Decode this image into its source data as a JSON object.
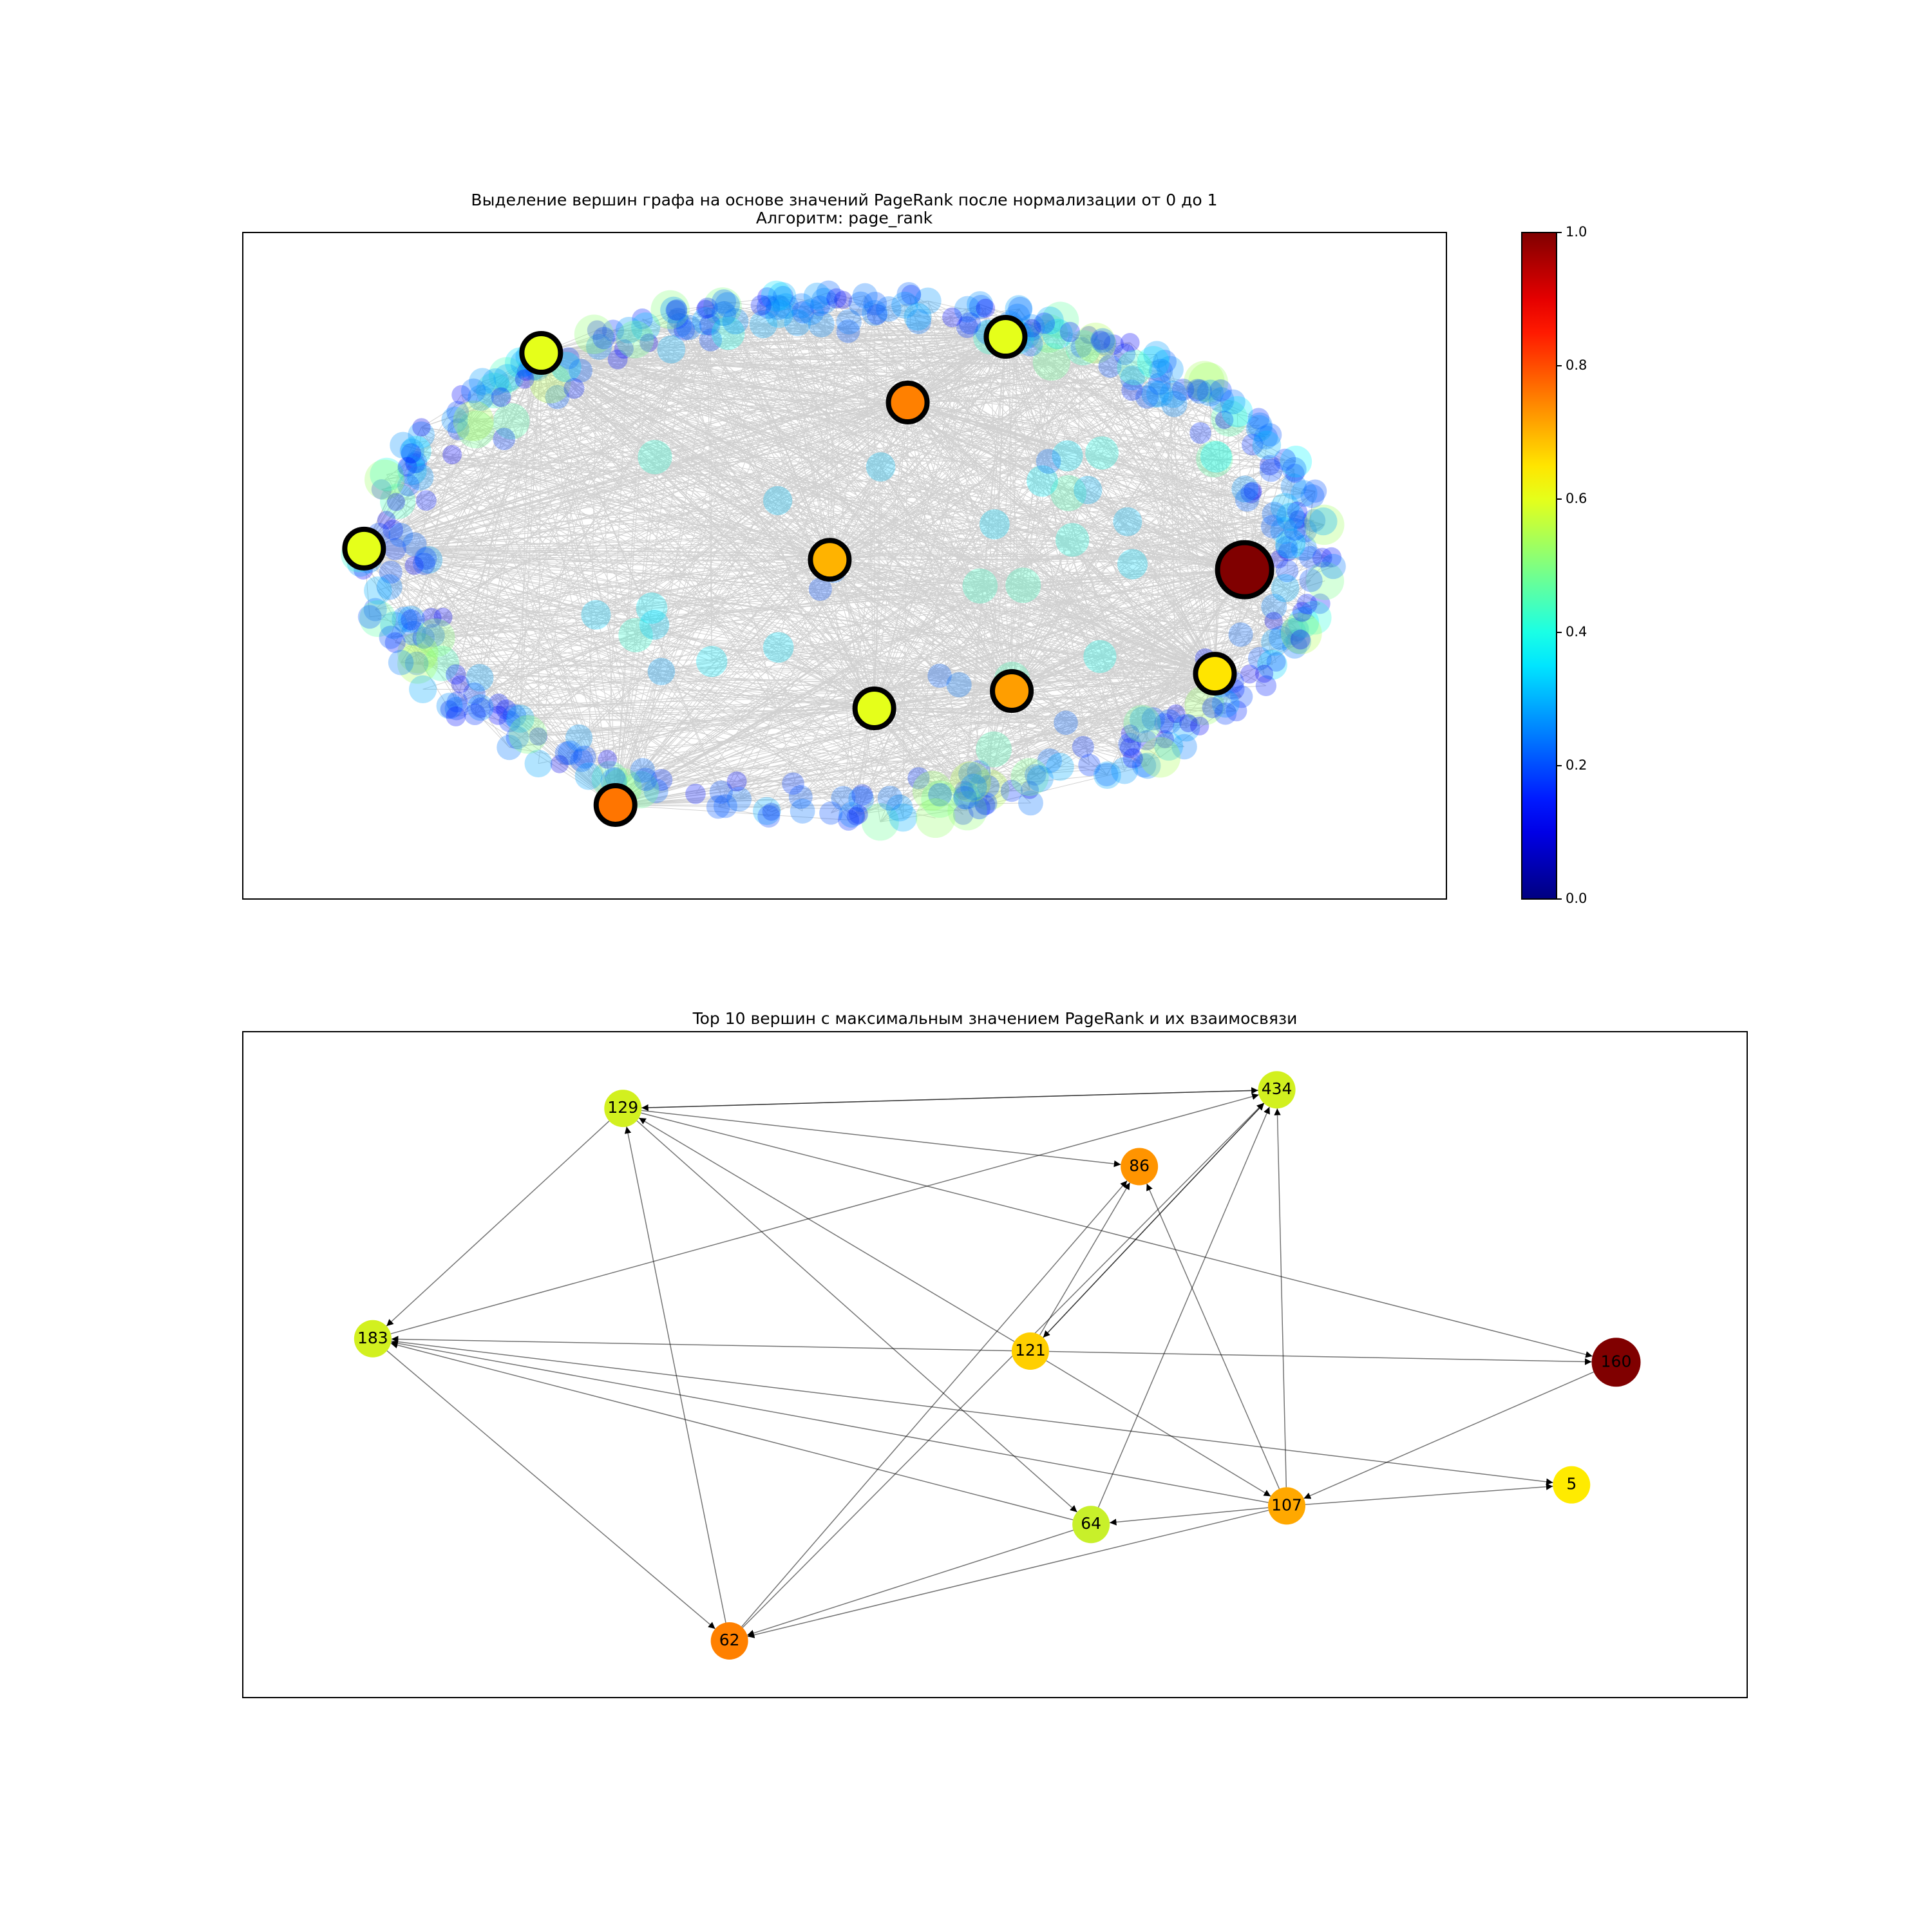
{
  "top_graph": {
    "title": "Выделение вершин графа на основе значений PageRank после нормализации от 0 до 1",
    "subtitle": "Алгоритм: page_rank",
    "colorbar": {
      "colormap": "jet",
      "lim": [
        0,
        1
      ],
      "ticks": [
        {
          "value": 0,
          "label": "0.0"
        },
        {
          "value": 0.2,
          "label": "0.2"
        },
        {
          "value": 0.4,
          "label": "0.4"
        },
        {
          "value": 0.6,
          "label": "0.6"
        },
        {
          "value": 0.8,
          "label": "0.8"
        },
        {
          "value": 1,
          "label": "1.0"
        }
      ]
    }
  },
  "bottom_graph": {
    "title": "Top 10 вершин с максимальным значением PageRank и их взаимосвязи",
    "nodes": [
      {
        "label": "129",
        "color": "#d2f01f"
      },
      {
        "label": "434",
        "color": "#d2f01f"
      },
      {
        "label": "86",
        "color": "#ff9400"
      },
      {
        "label": "183",
        "color": "#d2f01f"
      },
      {
        "label": "121",
        "color": "#ffcf00"
      },
      {
        "label": "160",
        "color": "#800000"
      },
      {
        "label": "5",
        "color": "#ffeb00"
      },
      {
        "label": "107",
        "color": "#ffa800"
      },
      {
        "label": "64",
        "color": "#c8f02a"
      },
      {
        "label": "62",
        "color": "#ff8000"
      }
    ]
  }
}
